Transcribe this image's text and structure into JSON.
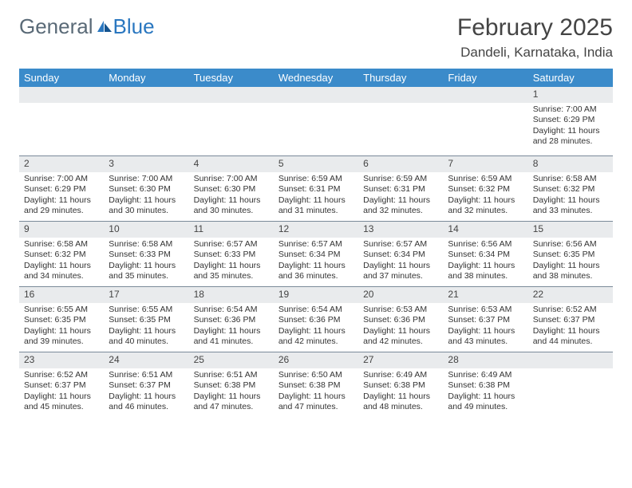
{
  "brand": {
    "part1": "General",
    "part2": "Blue"
  },
  "title": "February 2025",
  "location": "Dandeli, Karnataka, India",
  "daysOfWeek": [
    "Sunday",
    "Monday",
    "Tuesday",
    "Wednesday",
    "Thursday",
    "Friday",
    "Saturday"
  ],
  "colors": {
    "header_bg": "#3b8bca",
    "header_text": "#ffffff",
    "daynum_bg": "#e9ebed",
    "border": "#7a8a99",
    "text": "#333333",
    "logo_gray": "#5a6a77",
    "logo_blue": "#2a77c0"
  },
  "weeks": [
    [
      {
        "n": "",
        "sr": "",
        "ss": "",
        "dl": ""
      },
      {
        "n": "",
        "sr": "",
        "ss": "",
        "dl": ""
      },
      {
        "n": "",
        "sr": "",
        "ss": "",
        "dl": ""
      },
      {
        "n": "",
        "sr": "",
        "ss": "",
        "dl": ""
      },
      {
        "n": "",
        "sr": "",
        "ss": "",
        "dl": ""
      },
      {
        "n": "",
        "sr": "",
        "ss": "",
        "dl": ""
      },
      {
        "n": "1",
        "sr": "Sunrise: 7:00 AM",
        "ss": "Sunset: 6:29 PM",
        "dl": "Daylight: 11 hours and 28 minutes."
      }
    ],
    [
      {
        "n": "2",
        "sr": "Sunrise: 7:00 AM",
        "ss": "Sunset: 6:29 PM",
        "dl": "Daylight: 11 hours and 29 minutes."
      },
      {
        "n": "3",
        "sr": "Sunrise: 7:00 AM",
        "ss": "Sunset: 6:30 PM",
        "dl": "Daylight: 11 hours and 30 minutes."
      },
      {
        "n": "4",
        "sr": "Sunrise: 7:00 AM",
        "ss": "Sunset: 6:30 PM",
        "dl": "Daylight: 11 hours and 30 minutes."
      },
      {
        "n": "5",
        "sr": "Sunrise: 6:59 AM",
        "ss": "Sunset: 6:31 PM",
        "dl": "Daylight: 11 hours and 31 minutes."
      },
      {
        "n": "6",
        "sr": "Sunrise: 6:59 AM",
        "ss": "Sunset: 6:31 PM",
        "dl": "Daylight: 11 hours and 32 minutes."
      },
      {
        "n": "7",
        "sr": "Sunrise: 6:59 AM",
        "ss": "Sunset: 6:32 PM",
        "dl": "Daylight: 11 hours and 32 minutes."
      },
      {
        "n": "8",
        "sr": "Sunrise: 6:58 AM",
        "ss": "Sunset: 6:32 PM",
        "dl": "Daylight: 11 hours and 33 minutes."
      }
    ],
    [
      {
        "n": "9",
        "sr": "Sunrise: 6:58 AM",
        "ss": "Sunset: 6:32 PM",
        "dl": "Daylight: 11 hours and 34 minutes."
      },
      {
        "n": "10",
        "sr": "Sunrise: 6:58 AM",
        "ss": "Sunset: 6:33 PM",
        "dl": "Daylight: 11 hours and 35 minutes."
      },
      {
        "n": "11",
        "sr": "Sunrise: 6:57 AM",
        "ss": "Sunset: 6:33 PM",
        "dl": "Daylight: 11 hours and 35 minutes."
      },
      {
        "n": "12",
        "sr": "Sunrise: 6:57 AM",
        "ss": "Sunset: 6:34 PM",
        "dl": "Daylight: 11 hours and 36 minutes."
      },
      {
        "n": "13",
        "sr": "Sunrise: 6:57 AM",
        "ss": "Sunset: 6:34 PM",
        "dl": "Daylight: 11 hours and 37 minutes."
      },
      {
        "n": "14",
        "sr": "Sunrise: 6:56 AM",
        "ss": "Sunset: 6:34 PM",
        "dl": "Daylight: 11 hours and 38 minutes."
      },
      {
        "n": "15",
        "sr": "Sunrise: 6:56 AM",
        "ss": "Sunset: 6:35 PM",
        "dl": "Daylight: 11 hours and 38 minutes."
      }
    ],
    [
      {
        "n": "16",
        "sr": "Sunrise: 6:55 AM",
        "ss": "Sunset: 6:35 PM",
        "dl": "Daylight: 11 hours and 39 minutes."
      },
      {
        "n": "17",
        "sr": "Sunrise: 6:55 AM",
        "ss": "Sunset: 6:35 PM",
        "dl": "Daylight: 11 hours and 40 minutes."
      },
      {
        "n": "18",
        "sr": "Sunrise: 6:54 AM",
        "ss": "Sunset: 6:36 PM",
        "dl": "Daylight: 11 hours and 41 minutes."
      },
      {
        "n": "19",
        "sr": "Sunrise: 6:54 AM",
        "ss": "Sunset: 6:36 PM",
        "dl": "Daylight: 11 hours and 42 minutes."
      },
      {
        "n": "20",
        "sr": "Sunrise: 6:53 AM",
        "ss": "Sunset: 6:36 PM",
        "dl": "Daylight: 11 hours and 42 minutes."
      },
      {
        "n": "21",
        "sr": "Sunrise: 6:53 AM",
        "ss": "Sunset: 6:37 PM",
        "dl": "Daylight: 11 hours and 43 minutes."
      },
      {
        "n": "22",
        "sr": "Sunrise: 6:52 AM",
        "ss": "Sunset: 6:37 PM",
        "dl": "Daylight: 11 hours and 44 minutes."
      }
    ],
    [
      {
        "n": "23",
        "sr": "Sunrise: 6:52 AM",
        "ss": "Sunset: 6:37 PM",
        "dl": "Daylight: 11 hours and 45 minutes."
      },
      {
        "n": "24",
        "sr": "Sunrise: 6:51 AM",
        "ss": "Sunset: 6:37 PM",
        "dl": "Daylight: 11 hours and 46 minutes."
      },
      {
        "n": "25",
        "sr": "Sunrise: 6:51 AM",
        "ss": "Sunset: 6:38 PM",
        "dl": "Daylight: 11 hours and 47 minutes."
      },
      {
        "n": "26",
        "sr": "Sunrise: 6:50 AM",
        "ss": "Sunset: 6:38 PM",
        "dl": "Daylight: 11 hours and 47 minutes."
      },
      {
        "n": "27",
        "sr": "Sunrise: 6:49 AM",
        "ss": "Sunset: 6:38 PM",
        "dl": "Daylight: 11 hours and 48 minutes."
      },
      {
        "n": "28",
        "sr": "Sunrise: 6:49 AM",
        "ss": "Sunset: 6:38 PM",
        "dl": "Daylight: 11 hours and 49 minutes."
      },
      {
        "n": "",
        "sr": "",
        "ss": "",
        "dl": ""
      }
    ]
  ]
}
